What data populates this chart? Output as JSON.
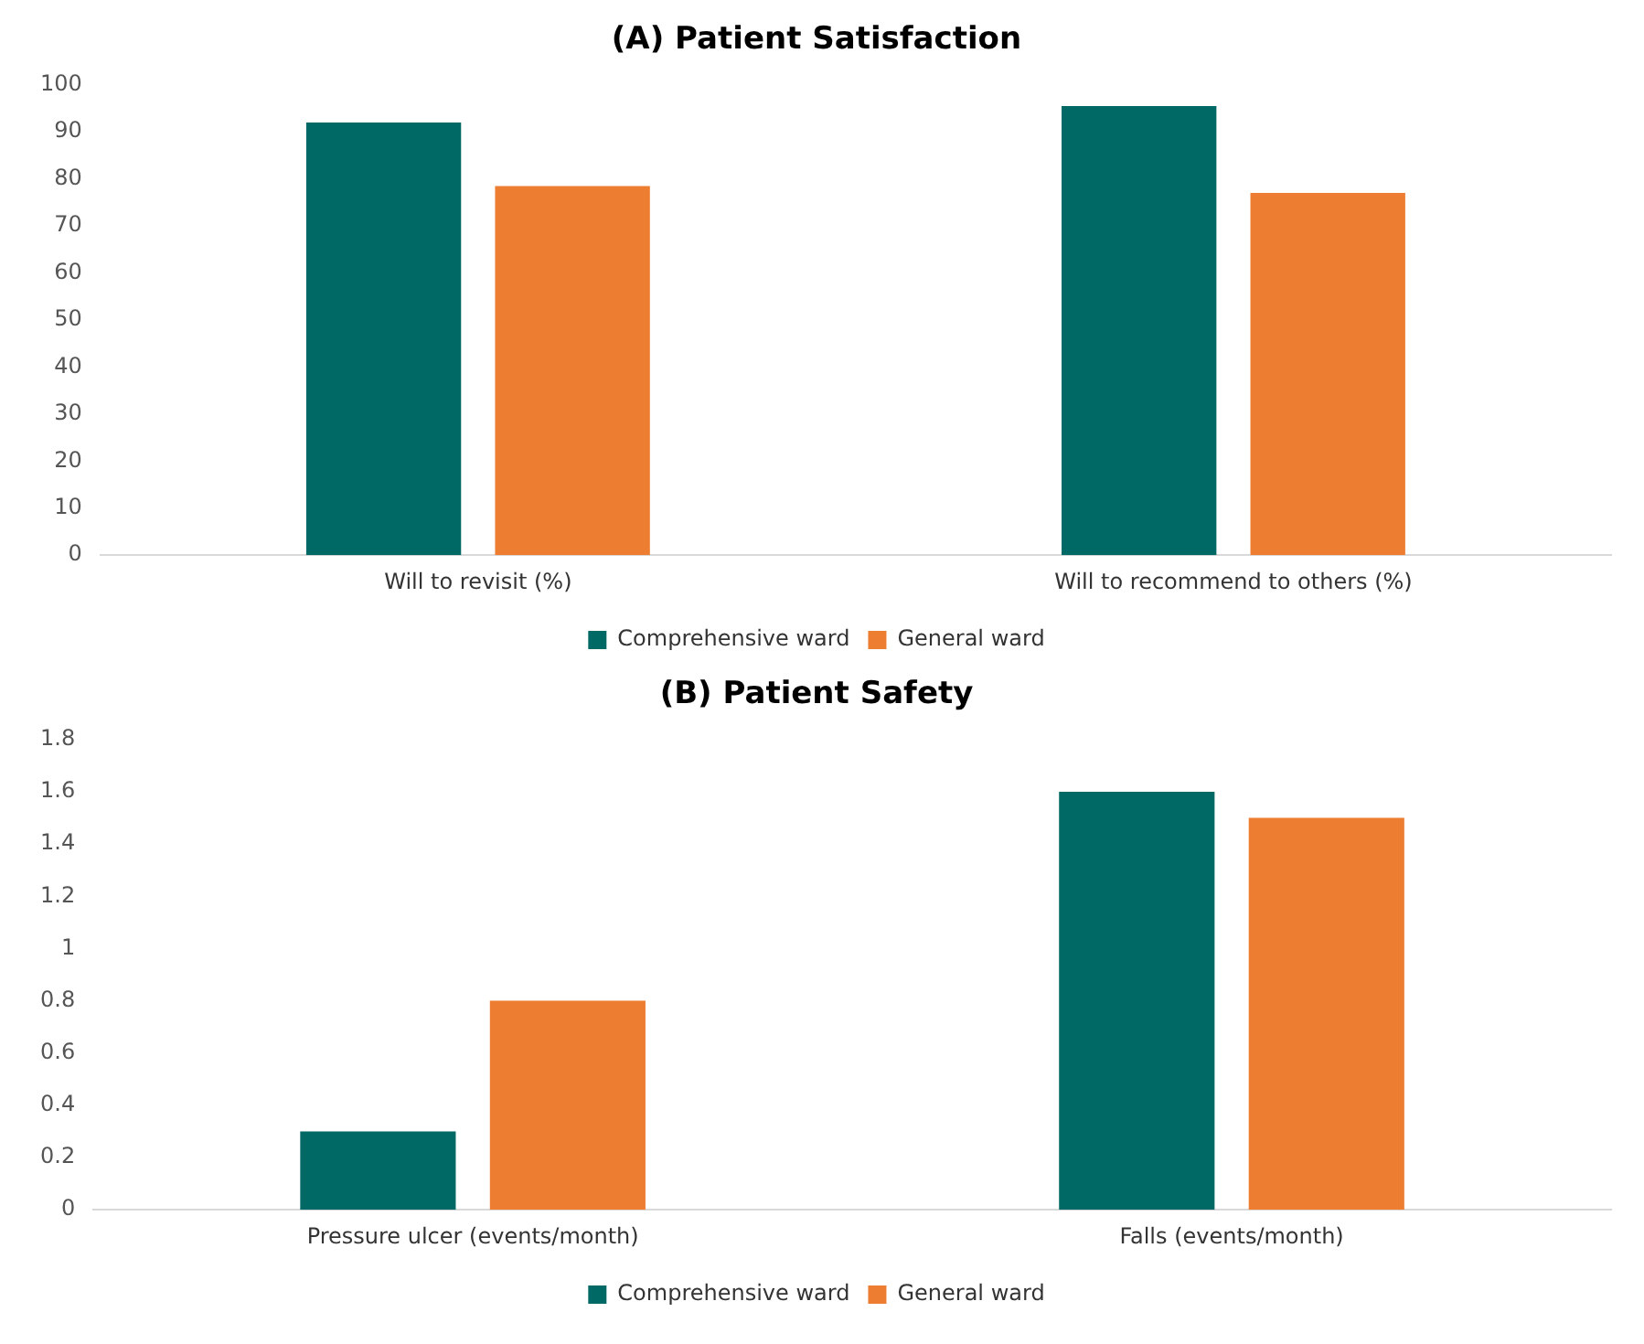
{
  "chart_data": [
    {
      "type": "bar",
      "title": "(A) Patient Satisfaction",
      "categories": [
        "Will to revisit (%)",
        "Will to recommend to others (%)"
      ],
      "series": [
        {
          "name": "Comprehensive ward",
          "color": "#006865",
          "values": [
            92,
            95.5
          ]
        },
        {
          "name": "General ward",
          "color": "#ed7d31",
          "values": [
            78.5,
            77
          ]
        }
      ],
      "ylim": [
        0,
        100
      ],
      "yticks": [
        0,
        10,
        20,
        30,
        40,
        50,
        60,
        70,
        80,
        90,
        100
      ],
      "grid": false,
      "legend": "bottom"
    },
    {
      "type": "bar",
      "title": "(B) Patient Safety",
      "categories": [
        "Pressure ulcer (events/month)",
        "Falls (events/month)"
      ],
      "series": [
        {
          "name": "Comprehensive ward",
          "color": "#006865",
          "values": [
            0.3,
            1.6
          ]
        },
        {
          "name": "General ward",
          "color": "#ed7d31",
          "values": [
            0.8,
            1.5
          ]
        }
      ],
      "ylim": [
        0,
        1.8
      ],
      "yticks": [
        0,
        0.2,
        0.4,
        0.6,
        0.8,
        1,
        1.2,
        1.4,
        1.6,
        1.8
      ],
      "grid": false,
      "legend": "bottom"
    }
  ]
}
